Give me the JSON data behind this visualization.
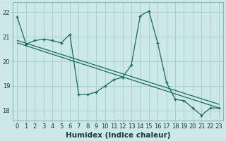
{
  "title": "",
  "xlabel": "Humidex (Indice chaleur)",
  "bg_color": "#cce8e8",
  "line_color": "#1a6b5a",
  "grid_color": "#aacfcf",
  "xlim": [
    -0.5,
    23.5
  ],
  "ylim": [
    17.6,
    22.4
  ],
  "xticks": [
    0,
    1,
    2,
    3,
    4,
    5,
    6,
    7,
    8,
    9,
    10,
    11,
    12,
    13,
    14,
    15,
    16,
    17,
    18,
    19,
    20,
    21,
    22,
    23
  ],
  "yticks": [
    18,
    19,
    20,
    21,
    22
  ],
  "series1_x": [
    0,
    1,
    2,
    3,
    4,
    5,
    6,
    7,
    8,
    9,
    10,
    11,
    12,
    13,
    14,
    15,
    16,
    17,
    18,
    19,
    20,
    21,
    22,
    23
  ],
  "series1_y": [
    21.8,
    20.7,
    20.85,
    20.9,
    20.85,
    20.75,
    21.1,
    18.65,
    18.65,
    18.75,
    19.0,
    19.25,
    19.35,
    19.85,
    21.85,
    22.05,
    20.75,
    19.15,
    18.45,
    18.4,
    18.1,
    17.8,
    18.1,
    18.1
  ],
  "series2_x": [
    0,
    23
  ],
  "series2_y": [
    20.85,
    18.25
  ],
  "series3_x": [
    0,
    23
  ],
  "series3_y": [
    20.75,
    18.1
  ],
  "xlabel_fontsize": 7.5,
  "tick_fontsize": 6
}
